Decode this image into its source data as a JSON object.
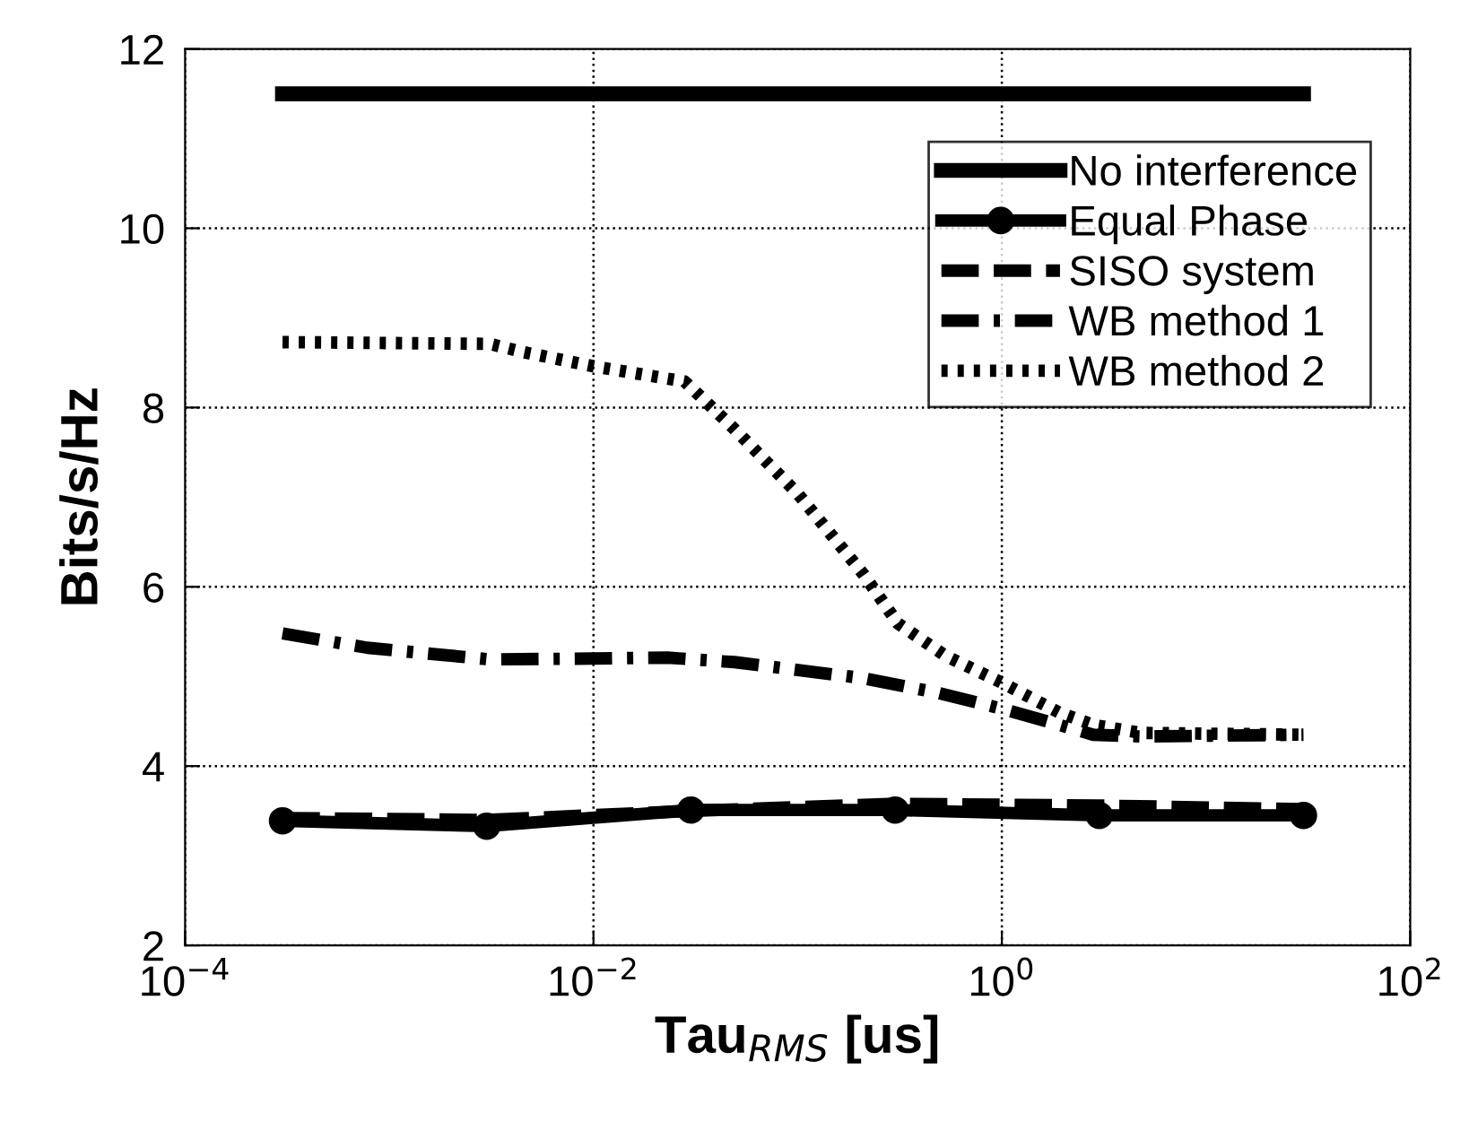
{
  "chart_data": {
    "type": "line",
    "xlabel": "Tau$_{RMS}$ [us]",
    "ylabel": "Bits/s/Hz",
    "log": "x",
    "xlim": [
      0.0001,
      100
    ],
    "xticks": [
      {
        "value": 0.0001,
        "label": "10$^{−4}$"
      },
      {
        "value": 0.01,
        "label": "10$^{−2}$"
      },
      {
        "value": 1,
        "label": "10$^{0}$"
      },
      {
        "value": 100,
        "label": "10$^{2}$"
      }
    ],
    "ylim": [
      2,
      12
    ],
    "yticks": [
      2,
      4,
      6,
      8,
      10,
      12
    ],
    "grid": true,
    "legend": "top right",
    "series": [
      {
        "name": "No interference",
        "color": "#000000",
        "line_style": "solid",
        "marker": "none",
        "x": [
          0.0003,
          30
        ],
        "values": [
          11.5,
          11.5
        ]
      },
      {
        "name": "Equal Phase",
        "color": "#000000",
        "line_style": "solid",
        "marker": "circle",
        "x": [
          0.0003,
          0.003,
          0.03,
          0.3,
          3,
          30
        ],
        "values": [
          3.39,
          3.33,
          3.51,
          3.51,
          3.45,
          3.45
        ]
      },
      {
        "name": "SISO system",
        "color": "#000000",
        "line_style": "dashed",
        "marker": "none",
        "x": [
          0.0003,
          0.003,
          0.03,
          0.3,
          3,
          30
        ],
        "values": [
          3.42,
          3.4,
          3.5,
          3.58,
          3.56,
          3.52
        ]
      },
      {
        "name": "WB method 1",
        "color": "#000000",
        "line_style": "dashdot",
        "marker": "none",
        "x": [
          0.0003,
          0.00078,
          0.0031,
          0.01,
          0.023,
          0.049,
          0.21,
          0.48,
          1,
          1.6,
          2.8,
          4.8,
          30
        ],
        "values": [
          5.48,
          5.32,
          5.19,
          5.2,
          5.21,
          5.16,
          4.98,
          4.82,
          4.64,
          4.51,
          4.35,
          4.33,
          4.35
        ]
      },
      {
        "name": "WB method 2",
        "color": "#000000",
        "line_style": "dotted",
        "marker": "none",
        "x": [
          0.0003,
          0.0031,
          0.0045,
          0.01,
          0.028,
          0.049,
          0.1,
          0.21,
          0.31,
          0.53,
          1,
          1.9,
          2.8,
          4.8,
          30
        ],
        "values": [
          8.73,
          8.71,
          8.62,
          8.46,
          8.29,
          7.76,
          7.04,
          6.14,
          5.59,
          5.23,
          4.93,
          4.6,
          4.46,
          4.37,
          4.35
        ]
      }
    ]
  }
}
